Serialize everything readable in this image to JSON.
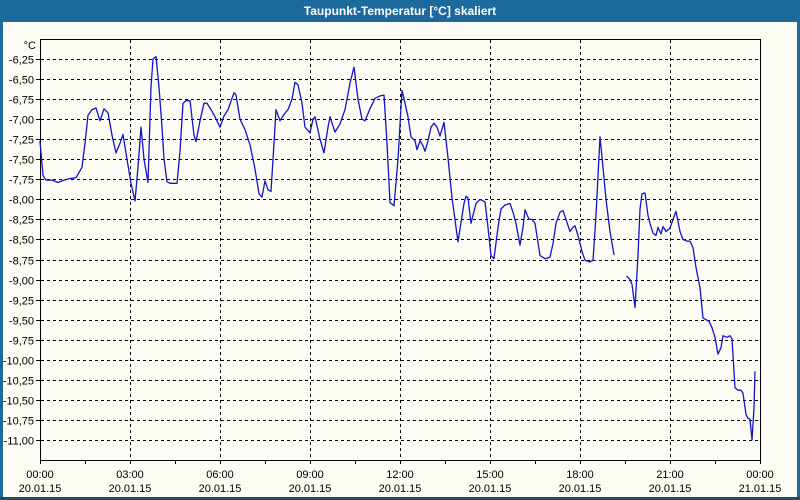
{
  "title": "Taupunkt-Temperatur [°C] skaliert",
  "colors": {
    "titlebar_bg": "#1c699b",
    "titlebar_text": "#ffffff",
    "frame_side": "#1c699b",
    "frame_bottom": "#28455e",
    "page_bg": "#fcfcf4",
    "plot_border": "#000000",
    "grid": "#000000",
    "line": "#1414c8",
    "label": "#000000"
  },
  "chart_data": {
    "type": "line",
    "title": "Taupunkt-Temperatur [°C] skaliert",
    "unit_label": "°C",
    "grid": "dashed",
    "legend": "none",
    "x_axis": {
      "min": 0,
      "max": 1440,
      "gridlines_minutes": [
        180,
        360,
        540,
        720,
        900,
        1080,
        1260
      ],
      "minor_tick_every_minutes": 90,
      "ticks": [
        {
          "m": 0,
          "time": "00:00",
          "date": "20.01.15"
        },
        {
          "m": 180,
          "time": "03:00",
          "date": "20.01.15"
        },
        {
          "m": 360,
          "time": "06:00",
          "date": "20.01.15"
        },
        {
          "m": 540,
          "time": "09:00",
          "date": "20.01.15"
        },
        {
          "m": 720,
          "time": "12:00",
          "date": "20.01.15"
        },
        {
          "m": 900,
          "time": "15:00",
          "date": "20.01.15"
        },
        {
          "m": 1080,
          "time": "18:00",
          "date": "20.01.15"
        },
        {
          "m": 1260,
          "time": "21:00",
          "date": "20.01.15"
        },
        {
          "m": 1440,
          "time": "00:00",
          "date": "21.01.15"
        }
      ]
    },
    "y_axis": {
      "min": -11.25,
      "max": -6.0,
      "step": 0.25,
      "ticks": [
        {
          "value": -6.25,
          "label": "-6,25"
        },
        {
          "value": -6.5,
          "label": "-6,50"
        },
        {
          "value": -6.75,
          "label": "-6,75"
        },
        {
          "value": -7.0,
          "label": "-7,00"
        },
        {
          "value": -7.25,
          "label": "-7,25"
        },
        {
          "value": -7.5,
          "label": "-7,50"
        },
        {
          "value": -7.75,
          "label": "-7,75"
        },
        {
          "value": -8.0,
          "label": "-8,00"
        },
        {
          "value": -8.25,
          "label": "-8,25"
        },
        {
          "value": -8.5,
          "label": "-8,50"
        },
        {
          "value": -8.75,
          "label": "-8,75"
        },
        {
          "value": -9.0,
          "label": "-9,00"
        },
        {
          "value": -9.25,
          "label": "-9,25"
        },
        {
          "value": -9.5,
          "label": "-9,50"
        },
        {
          "value": -9.75,
          "label": "-9,75"
        },
        {
          "value": -10.0,
          "label": "-10,00"
        },
        {
          "value": -10.25,
          "label": "-10,25"
        },
        {
          "value": -10.5,
          "label": "-10,50"
        },
        {
          "value": -10.75,
          "label": "-10,75"
        },
        {
          "value": -11.0,
          "label": "-11,00"
        }
      ]
    },
    "series": [
      {
        "name": "Taupunkt-Temperatur",
        "points": [
          [
            0,
            -7.28
          ],
          [
            6,
            -7.7
          ],
          [
            12,
            -7.76
          ],
          [
            24,
            -7.76
          ],
          [
            36,
            -7.79
          ],
          [
            48,
            -7.76
          ],
          [
            60,
            -7.74
          ],
          [
            72,
            -7.73
          ],
          [
            84,
            -7.6
          ],
          [
            90,
            -7.3
          ],
          [
            96,
            -6.95
          ],
          [
            104,
            -6.88
          ],
          [
            112,
            -6.86
          ],
          [
            120,
            -7.02
          ],
          [
            128,
            -6.87
          ],
          [
            136,
            -6.92
          ],
          [
            144,
            -7.2
          ],
          [
            152,
            -7.42
          ],
          [
            160,
            -7.3
          ],
          [
            166,
            -7.19
          ],
          [
            174,
            -7.5
          ],
          [
            182,
            -7.8
          ],
          [
            190,
            -8.02
          ],
          [
            196,
            -7.6
          ],
          [
            202,
            -7.1
          ],
          [
            208,
            -7.5
          ],
          [
            216,
            -7.79
          ],
          [
            222,
            -6.6
          ],
          [
            226,
            -6.25
          ],
          [
            232,
            -6.22
          ],
          [
            238,
            -6.6
          ],
          [
            244,
            -7.1
          ],
          [
            248,
            -7.5
          ],
          [
            254,
            -7.78
          ],
          [
            260,
            -7.8
          ],
          [
            274,
            -7.8
          ],
          [
            280,
            -7.4
          ],
          [
            286,
            -6.8
          ],
          [
            292,
            -6.77
          ],
          [
            300,
            -6.77
          ],
          [
            308,
            -7.2
          ],
          [
            312,
            -7.28
          ],
          [
            320,
            -7.02
          ],
          [
            328,
            -6.8
          ],
          [
            334,
            -6.8
          ],
          [
            342,
            -6.88
          ],
          [
            350,
            -6.97
          ],
          [
            360,
            -7.1
          ],
          [
            368,
            -6.96
          ],
          [
            376,
            -6.88
          ],
          [
            388,
            -6.67
          ],
          [
            392,
            -6.7
          ],
          [
            400,
            -7.0
          ],
          [
            410,
            -7.13
          ],
          [
            420,
            -7.32
          ],
          [
            430,
            -7.62
          ],
          [
            438,
            -7.93
          ],
          [
            444,
            -7.97
          ],
          [
            450,
            -7.77
          ],
          [
            456,
            -7.88
          ],
          [
            462,
            -7.9
          ],
          [
            468,
            -7.3
          ],
          [
            472,
            -6.88
          ],
          [
            480,
            -7.02
          ],
          [
            488,
            -6.94
          ],
          [
            496,
            -6.88
          ],
          [
            504,
            -6.75
          ],
          [
            510,
            -6.54
          ],
          [
            516,
            -6.57
          ],
          [
            524,
            -6.8
          ],
          [
            530,
            -7.1
          ],
          [
            540,
            -7.17
          ],
          [
            546,
            -7.0
          ],
          [
            550,
            -6.97
          ],
          [
            560,
            -7.25
          ],
          [
            568,
            -7.42
          ],
          [
            576,
            -7.1
          ],
          [
            580,
            -6.97
          ],
          [
            590,
            -7.16
          ],
          [
            596,
            -7.1
          ],
          [
            600,
            -7.06
          ],
          [
            610,
            -6.88
          ],
          [
            620,
            -6.55
          ],
          [
            628,
            -6.35
          ],
          [
            636,
            -6.75
          ],
          [
            644,
            -7.0
          ],
          [
            650,
            -7.02
          ],
          [
            660,
            -6.87
          ],
          [
            670,
            -6.74
          ],
          [
            680,
            -6.71
          ],
          [
            688,
            -6.7
          ],
          [
            694,
            -7.3
          ],
          [
            700,
            -8.04
          ],
          [
            708,
            -8.08
          ],
          [
            716,
            -7.5
          ],
          [
            724,
            -6.64
          ],
          [
            730,
            -6.8
          ],
          [
            736,
            -6.97
          ],
          [
            742,
            -7.22
          ],
          [
            750,
            -7.27
          ],
          [
            754,
            -7.38
          ],
          [
            760,
            -7.27
          ],
          [
            766,
            -7.33
          ],
          [
            770,
            -7.4
          ],
          [
            776,
            -7.27
          ],
          [
            782,
            -7.1
          ],
          [
            788,
            -7.05
          ],
          [
            794,
            -7.1
          ],
          [
            800,
            -7.21
          ],
          [
            808,
            -7.04
          ],
          [
            816,
            -7.48
          ],
          [
            824,
            -7.98
          ],
          [
            836,
            -8.53
          ],
          [
            848,
            -8.05
          ],
          [
            852,
            -7.96
          ],
          [
            856,
            -7.98
          ],
          [
            862,
            -8.3
          ],
          [
            872,
            -8.05
          ],
          [
            880,
            -8.0
          ],
          [
            890,
            -8.03
          ],
          [
            896,
            -8.35
          ],
          [
            902,
            -8.7
          ],
          [
            908,
            -8.74
          ],
          [
            916,
            -8.35
          ],
          [
            922,
            -8.12
          ],
          [
            930,
            -8.07
          ],
          [
            940,
            -8.05
          ],
          [
            946,
            -8.16
          ],
          [
            952,
            -8.3
          ],
          [
            960,
            -8.57
          ],
          [
            966,
            -8.35
          ],
          [
            970,
            -8.13
          ],
          [
            978,
            -8.25
          ],
          [
            984,
            -8.25
          ],
          [
            990,
            -8.3
          ],
          [
            1000,
            -8.7
          ],
          [
            1010,
            -8.74
          ],
          [
            1020,
            -8.72
          ],
          [
            1026,
            -8.55
          ],
          [
            1032,
            -8.3
          ],
          [
            1040,
            -8.16
          ],
          [
            1046,
            -8.14
          ],
          [
            1052,
            -8.25
          ],
          [
            1060,
            -8.4
          ],
          [
            1066,
            -8.35
          ],
          [
            1070,
            -8.33
          ],
          [
            1076,
            -8.45
          ],
          [
            1084,
            -8.65
          ],
          [
            1090,
            -8.76
          ],
          [
            1100,
            -8.78
          ],
          [
            1106,
            -8.76
          ],
          [
            1112,
            -8.2
          ],
          [
            1120,
            -7.22
          ],
          [
            1126,
            -7.6
          ],
          [
            1132,
            -8.0
          ],
          [
            1140,
            -8.4
          ],
          [
            1148,
            -8.69
          ],
          null,
          [
            1174,
            -8.96
          ],
          [
            1180,
            -9.0
          ],
          [
            1184,
            -9.06
          ],
          [
            1190,
            -9.35
          ],
          [
            1196,
            -8.7
          ],
          [
            1200,
            -8.12
          ],
          [
            1204,
            -7.93
          ],
          [
            1210,
            -7.92
          ],
          [
            1216,
            -8.2
          ],
          [
            1220,
            -8.3
          ],
          [
            1226,
            -8.42
          ],
          [
            1232,
            -8.45
          ],
          [
            1236,
            -8.35
          ],
          [
            1242,
            -8.43
          ],
          [
            1246,
            -8.34
          ],
          [
            1252,
            -8.4
          ],
          [
            1260,
            -8.36
          ],
          [
            1266,
            -8.25
          ],
          [
            1272,
            -8.15
          ],
          [
            1280,
            -8.4
          ],
          [
            1286,
            -8.5
          ],
          [
            1294,
            -8.52
          ],
          [
            1300,
            -8.52
          ],
          [
            1306,
            -8.6
          ],
          [
            1312,
            -8.85
          ],
          [
            1320,
            -9.1
          ],
          [
            1326,
            -9.48
          ],
          [
            1332,
            -9.5
          ],
          [
            1338,
            -9.52
          ],
          [
            1344,
            -9.6
          ],
          [
            1350,
            -9.72
          ],
          [
            1356,
            -9.93
          ],
          [
            1362,
            -9.85
          ],
          [
            1366,
            -9.7
          ],
          [
            1374,
            -9.72
          ],
          [
            1380,
            -9.7
          ],
          [
            1384,
            -9.74
          ],
          [
            1390,
            -10.35
          ],
          [
            1396,
            -10.38
          ],
          [
            1402,
            -10.38
          ],
          [
            1406,
            -10.42
          ],
          [
            1412,
            -10.68
          ],
          [
            1416,
            -10.73
          ],
          [
            1420,
            -10.74
          ],
          [
            1424,
            -11.0
          ],
          [
            1428,
            -10.6
          ],
          [
            1430,
            -10.15
          ]
        ],
        "data_gap_minutes": [
          1148,
          1174
        ]
      }
    ]
  }
}
